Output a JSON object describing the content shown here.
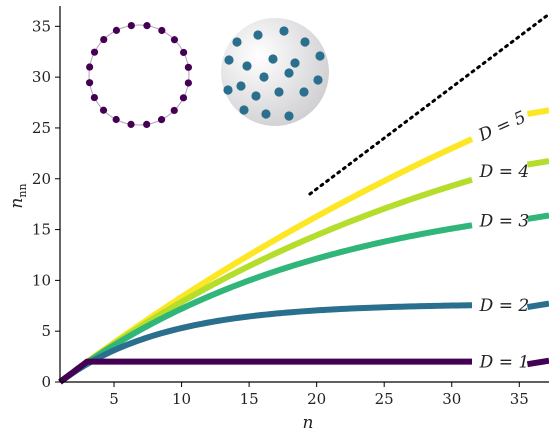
{
  "chart_data": {
    "type": "line",
    "xlabel": "n",
    "ylabel_main": "n",
    "ylabel_sub": "nn",
    "xlim": [
      1,
      37.2
    ],
    "ylim": [
      0,
      37
    ],
    "xticks": [
      5,
      10,
      15,
      20,
      25,
      30,
      35
    ],
    "yticks": [
      0,
      5,
      10,
      15,
      20,
      25,
      30,
      35
    ],
    "grid": false,
    "legend": "none",
    "reference_line": {
      "style": "dotted",
      "color": "#000000",
      "x_start": 19.5,
      "x_end": 37.2
    },
    "series": [
      {
        "label": "D = 1",
        "D": 1,
        "color": "#440154"
      },
      {
        "label": "D = 2",
        "D": 2,
        "color": "#2a6f8e"
      },
      {
        "label": "D = 3",
        "D": 3,
        "color": "#30b57a"
      },
      {
        "label": "D = 4",
        "D": 4,
        "color": "#b5dd2b"
      },
      {
        "label": "D = 5",
        "D": 5,
        "color": "#fde725"
      }
    ],
    "insets": [
      {
        "kind": "ring",
        "dot_count": 20,
        "color": "#440154"
      },
      {
        "kind": "disk",
        "dot_count": 20,
        "color": "#2a6f8e"
      }
    ]
  }
}
